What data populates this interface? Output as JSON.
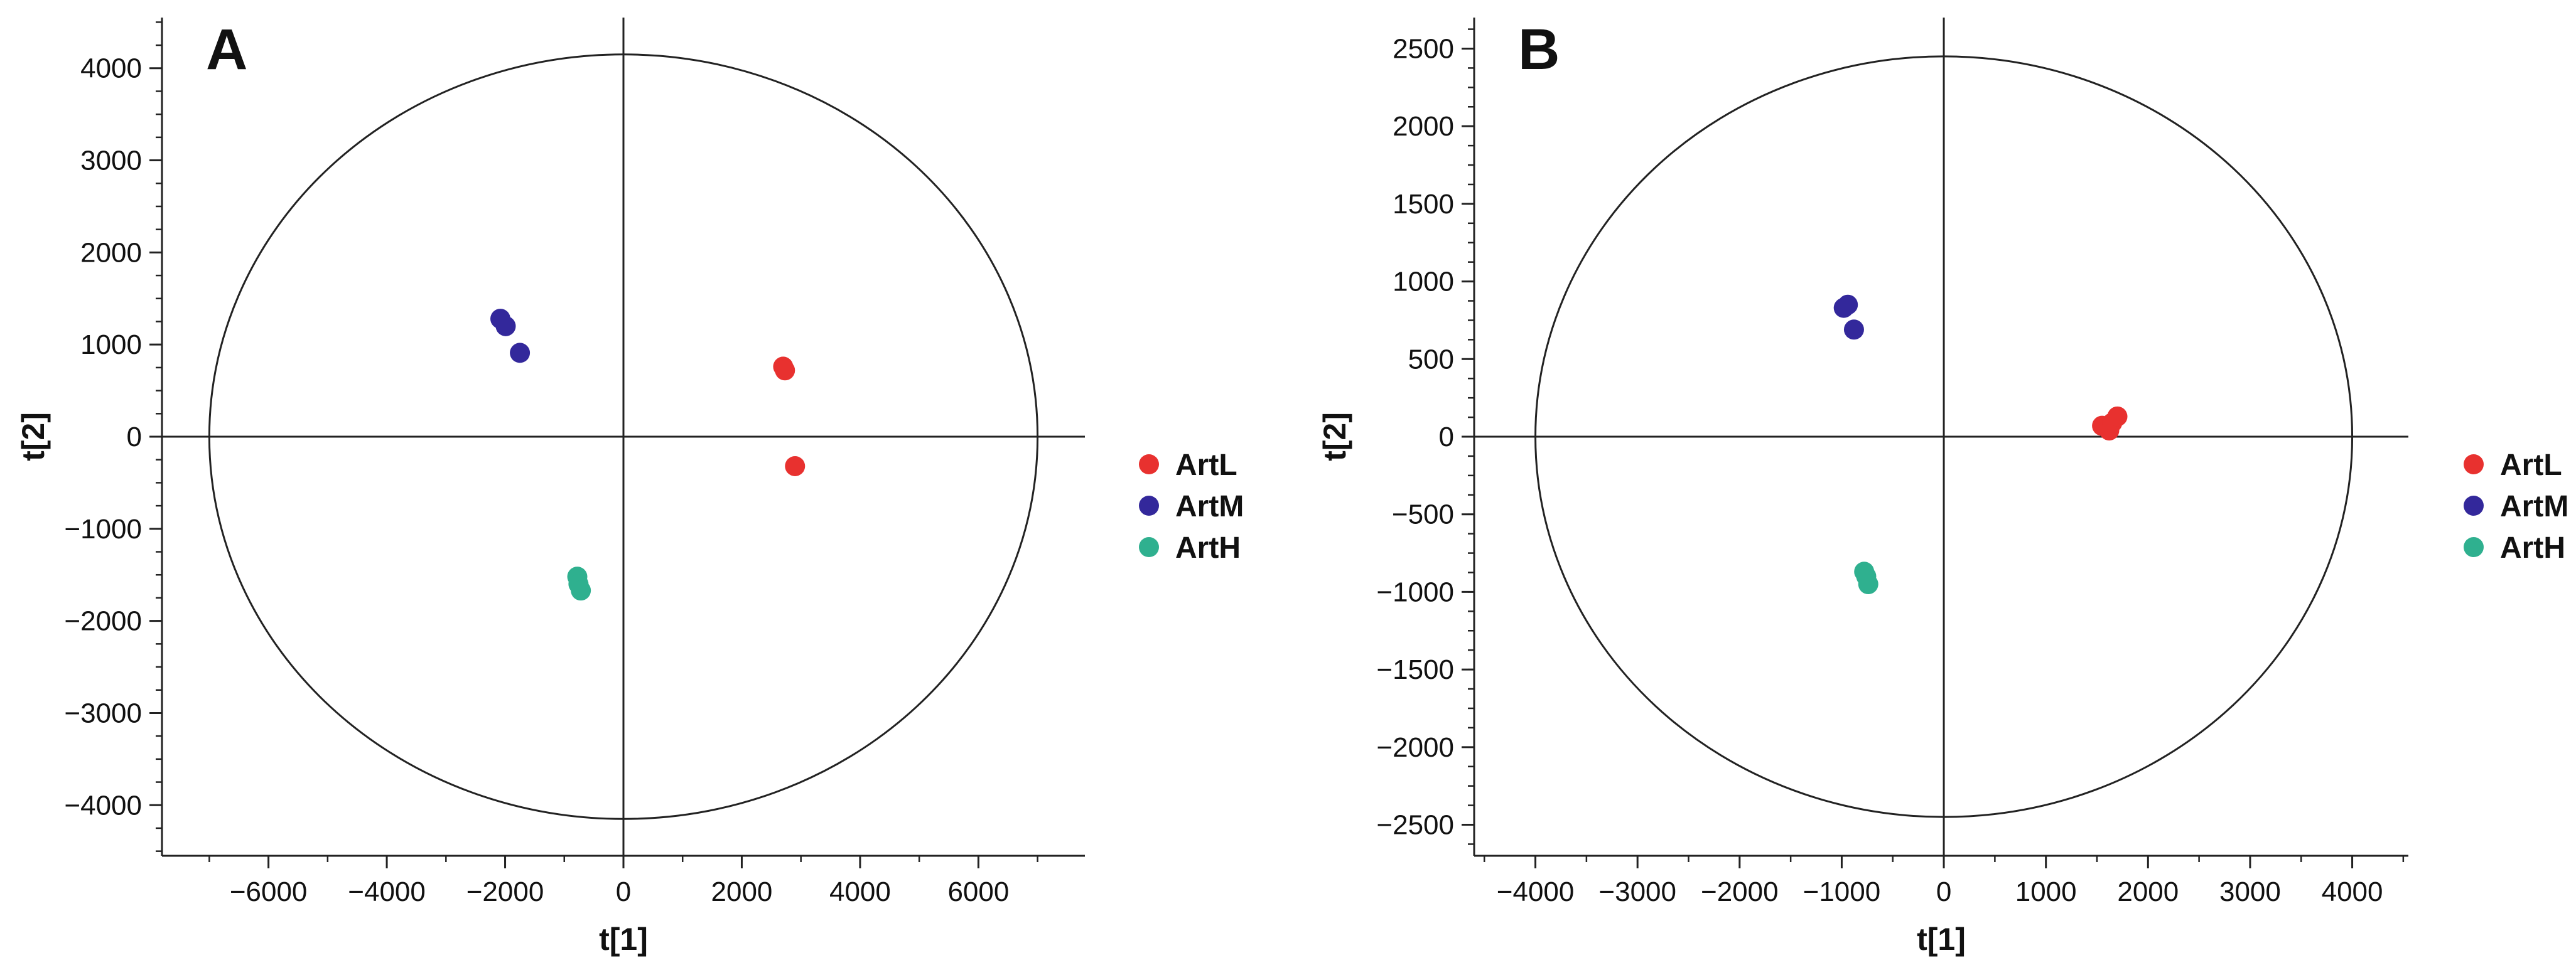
{
  "colors": {
    "ArtL": "#e8312f",
    "ArtM": "#33289b",
    "ArtH": "#2fb08f"
  },
  "chart_data": [
    {
      "type": "scatter",
      "panel_label": "A",
      "xlabel": "t[1]",
      "ylabel": "t[2]",
      "xlim": [
        -7800,
        7800
      ],
      "ylim": [
        -4550,
        4550
      ],
      "xticks": [
        -6000,
        -4000,
        -2000,
        0,
        2000,
        4000,
        6000
      ],
      "xtick_labels": [
        "−6000",
        "−4000",
        "−2000",
        "0",
        "2000",
        "4000",
        "6000"
      ],
      "yticks": [
        -4000,
        -3000,
        -2000,
        -1000,
        0,
        1000,
        2000,
        3000,
        4000
      ],
      "ytick_labels": [
        "−4000",
        "−3000",
        "−2000",
        "−1000",
        "0",
        "1000",
        "2000",
        "3000",
        "4000"
      ],
      "ellipse": {
        "rx": 7000,
        "ry": 4150
      },
      "grid": false,
      "legend_position": "right",
      "series": [
        {
          "name": "ArtL",
          "x": [
            2700,
            2730,
            2900
          ],
          "y": [
            760,
            720,
            -320
          ]
        },
        {
          "name": "ArtM",
          "x": [
            -2080,
            -1990,
            -1750
          ],
          "y": [
            1280,
            1200,
            910
          ]
        },
        {
          "name": "ArtH",
          "x": [
            -780,
            -760,
            -720
          ],
          "y": [
            -1520,
            -1600,
            -1670
          ]
        }
      ]
    },
    {
      "type": "scatter",
      "panel_label": "B",
      "xlabel": "t[1]",
      "ylabel": "t[2]",
      "xlim": [
        -4600,
        4550
      ],
      "ylim": [
        -2700,
        2700
      ],
      "xticks": [
        -4000,
        -3000,
        -2000,
        -1000,
        0,
        1000,
        2000,
        3000,
        4000
      ],
      "xtick_labels": [
        "−4000",
        "−3000",
        "−2000",
        "−1000",
        "0",
        "1000",
        "2000",
        "3000",
        "4000"
      ],
      "yticks": [
        -2500,
        -2000,
        -1500,
        -1000,
        -500,
        0,
        500,
        1000,
        1500,
        2000,
        2500
      ],
      "ytick_labels": [
        "−2500",
        "−2000",
        "−1500",
        "−1000",
        "−500",
        "0",
        "500",
        "1000",
        "1500",
        "2000",
        "2500"
      ],
      "ellipse": {
        "rx": 4000,
        "ry": 2450
      },
      "grid": false,
      "legend_position": "right",
      "series": [
        {
          "name": "ArtL",
          "x": [
            1550,
            1620,
            1650,
            1700
          ],
          "y": [
            70,
            40,
            90,
            130
          ]
        },
        {
          "name": "ArtM",
          "x": [
            -980,
            -940,
            -880
          ],
          "y": [
            830,
            850,
            690
          ]
        },
        {
          "name": "ArtH",
          "x": [
            -780,
            -760,
            -740
          ],
          "y": [
            -870,
            -900,
            -950
          ]
        }
      ]
    }
  ]
}
